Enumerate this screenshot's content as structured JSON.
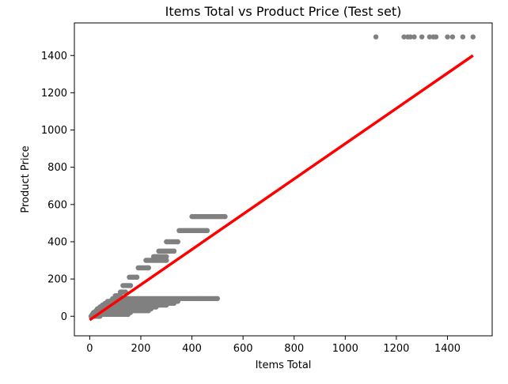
{
  "chart_data": {
    "type": "scatter",
    "title": "Items Total vs Product Price (Test set)",
    "xlabel": "Items Total",
    "ylabel": "Product Price",
    "xlim": [
      -60,
      1575
    ],
    "ylim": [
      -105,
      1575
    ],
    "xticks": [
      0,
      200,
      400,
      600,
      800,
      1000,
      1200,
      1400
    ],
    "yticks": [
      0,
      200,
      400,
      600,
      800,
      1000,
      1200,
      1400
    ],
    "grid": false,
    "point_color": "#808080",
    "line_color": "#ff0000",
    "regression_line": {
      "x": [
        0,
        1500
      ],
      "y": [
        -20,
        1400
      ]
    },
    "price_levels": [
      {
        "price": 0,
        "x_range": [
          5,
          40
        ]
      },
      {
        "price": 10,
        "x_range": [
          10,
          150
        ]
      },
      {
        "price": 20,
        "x_range": [
          15,
          160
        ]
      },
      {
        "price": 30,
        "x_range": [
          25,
          230
        ]
      },
      {
        "price": 40,
        "x_range": [
          30,
          240
        ]
      },
      {
        "price": 50,
        "x_range": [
          40,
          260
        ]
      },
      {
        "price": 60,
        "x_range": [
          50,
          300
        ]
      },
      {
        "price": 70,
        "x_range": [
          60,
          330
        ]
      },
      {
        "price": 80,
        "x_range": [
          70,
          345
        ]
      },
      {
        "price": 95,
        "x_range": [
          90,
          500
        ]
      },
      {
        "price": 110,
        "x_range": [
          100,
          120
        ]
      },
      {
        "price": 130,
        "x_range": [
          120,
          140
        ]
      },
      {
        "price": 165,
        "x_range": [
          130,
          160
        ]
      },
      {
        "price": 210,
        "x_range": [
          155,
          185
        ]
      },
      {
        "price": 260,
        "x_range": [
          190,
          230
        ]
      },
      {
        "price": 300,
        "x_range": [
          220,
          300
        ]
      },
      {
        "price": 320,
        "x_range": [
          250,
          300
        ]
      },
      {
        "price": 350,
        "x_range": [
          270,
          330
        ]
      },
      {
        "price": 400,
        "x_range": [
          300,
          345
        ]
      },
      {
        "price": 460,
        "x_range": [
          350,
          460
        ]
      },
      {
        "price": 535,
        "x_range": [
          400,
          530
        ]
      }
    ],
    "diag_points": [
      [
        8,
        5
      ],
      [
        12,
        10
      ],
      [
        16,
        15
      ],
      [
        20,
        20
      ],
      [
        25,
        25
      ],
      [
        30,
        30
      ],
      [
        35,
        35
      ],
      [
        40,
        40
      ],
      [
        45,
        45
      ],
      [
        50,
        50
      ],
      [
        55,
        55
      ],
      [
        60,
        60
      ],
      [
        65,
        65
      ],
      [
        70,
        70
      ],
      [
        78,
        78
      ],
      [
        85,
        85
      ],
      [
        92,
        92
      ],
      [
        100,
        95
      ]
    ],
    "top_points": [
      1120,
      1230,
      1245,
      1255,
      1270,
      1300,
      1330,
      1345,
      1355,
      1400,
      1420,
      1460,
      1500
    ],
    "top_price": 1500
  }
}
